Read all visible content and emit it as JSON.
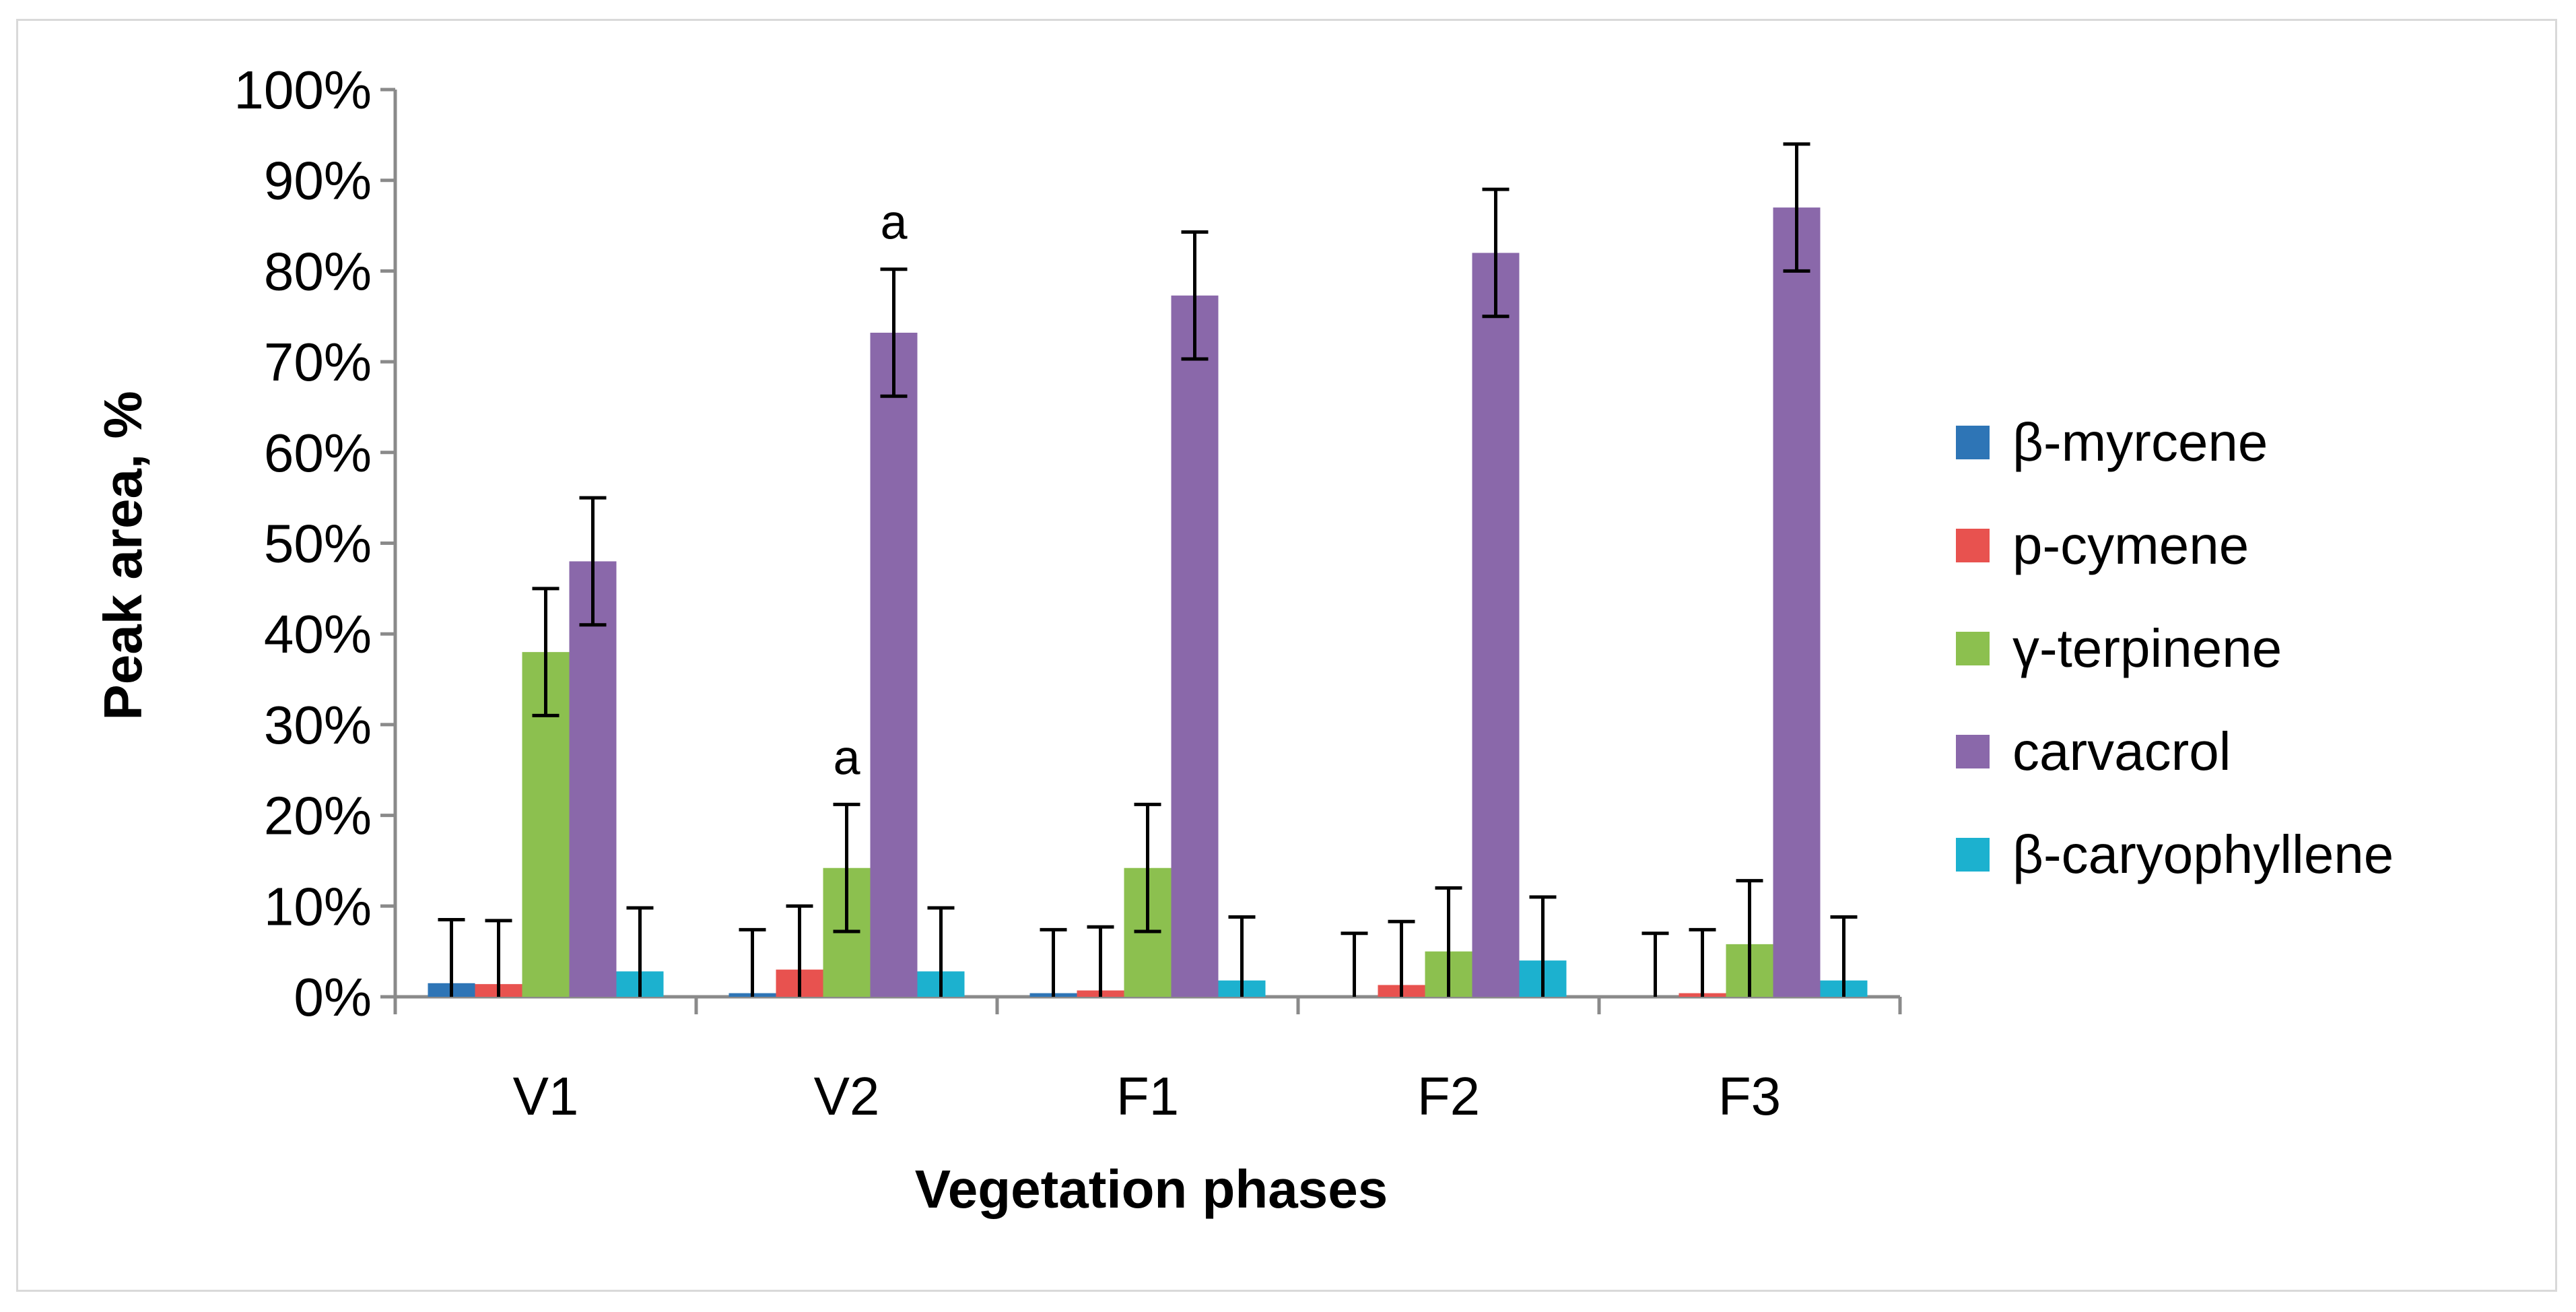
{
  "colors": {
    "b_myrcene": "#2E75B6",
    "p_cymene": "#E8524F",
    "g_terpinene": "#8CC04F",
    "carvacrol": "#8A68AA",
    "b_caryophyllene": "#1CB1CF",
    "axis": "#8a8a8a",
    "error_bar": "#000000",
    "frame": "#d9d9d9"
  },
  "chart_data": {
    "type": "bar",
    "title": "",
    "xlabel": "Vegetation phases",
    "ylabel": "Peak area, %",
    "ylim": [
      0,
      100
    ],
    "yticks": [
      "0%",
      "10%",
      "20%",
      "30%",
      "40%",
      "50%",
      "60%",
      "70%",
      "80%",
      "90%",
      "100%"
    ],
    "grid": false,
    "legend_position": "right",
    "categories": [
      "V1",
      "V2",
      "F1",
      "F2",
      "F3"
    ],
    "series": [
      {
        "name": "β-myrcene",
        "color_key": "b_myrcene",
        "values": [
          1.5,
          0.4,
          0.4,
          0.0,
          0.0
        ],
        "errors": [
          7,
          7,
          7,
          7,
          7
        ]
      },
      {
        "name": "p-cymene",
        "color_key": "p_cymene",
        "values": [
          1.4,
          3.0,
          0.7,
          1.3,
          0.4
        ],
        "errors": [
          7,
          7,
          7,
          7,
          7
        ]
      },
      {
        "name": "γ-terpinene",
        "color_key": "g_terpinene",
        "values": [
          38.0,
          14.2,
          14.2,
          5.0,
          5.8
        ],
        "errors": [
          7,
          7,
          7,
          7,
          7
        ]
      },
      {
        "name": "carvacrol",
        "color_key": "carvacrol",
        "values": [
          48.0,
          73.2,
          77.3,
          82.0,
          87.0
        ],
        "errors": [
          7,
          7,
          7,
          7,
          7
        ]
      },
      {
        "name": "β-caryophyllene",
        "color_key": "b_caryophyllene",
        "values": [
          2.8,
          2.8,
          1.8,
          4.0,
          1.8
        ],
        "errors": [
          7,
          7,
          7,
          7,
          7
        ]
      }
    ],
    "annotations": [
      {
        "text": "a",
        "category": "V2",
        "series": "γ-terpinene"
      },
      {
        "text": "a",
        "category": "V2",
        "series": "carvacrol"
      }
    ]
  }
}
